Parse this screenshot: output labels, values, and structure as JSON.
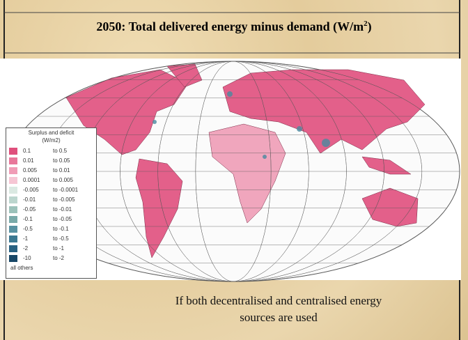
{
  "slide": {
    "title": "2050: Total delivered energy minus demand (W/m",
    "title_sup": "2",
    "title_end": ")",
    "legend": {
      "title": [
        "Surplus and deficit",
        "(W/m2)"
      ],
      "rows": [
        {
          "from": "0.1",
          "to": "to  0.5",
          "color": "#df4f7c"
        },
        {
          "from": "0.01",
          "to": "to  0.05",
          "color": "#e8779a"
        },
        {
          "from": "0.005",
          "to": "to  0.01",
          "color": "#f09cb6"
        },
        {
          "from": "0.0001",
          "to": "to  0.005",
          "color": "#f6c6d4"
        },
        {
          "from": "-0.005",
          "to": "to -0.0001",
          "color": "#dbe9e2"
        },
        {
          "from": "-0.01",
          "to": "to -0.005",
          "color": "#bcd6ce"
        },
        {
          "from": "-0.05",
          "to": "to -0.01",
          "color": "#9cc2ba"
        },
        {
          "from": "-0.1",
          "to": "to -0.05",
          "color": "#7aaaa9"
        },
        {
          "from": "-0.5",
          "to": "to -0.1",
          "color": "#5992a2"
        },
        {
          "from": "-1",
          "to": "to -0.5",
          "color": "#3b7891"
        },
        {
          "from": "-2",
          "to": "to -1",
          "color": "#286181"
        },
        {
          "from": "-10",
          "to": "to -2",
          "color": "#174767"
        },
        {
          "from": "all others",
          "to": null,
          "color": null
        }
      ]
    },
    "caption": [
      "If both decentralised and centralised energy",
      "sources are used"
    ]
  }
}
